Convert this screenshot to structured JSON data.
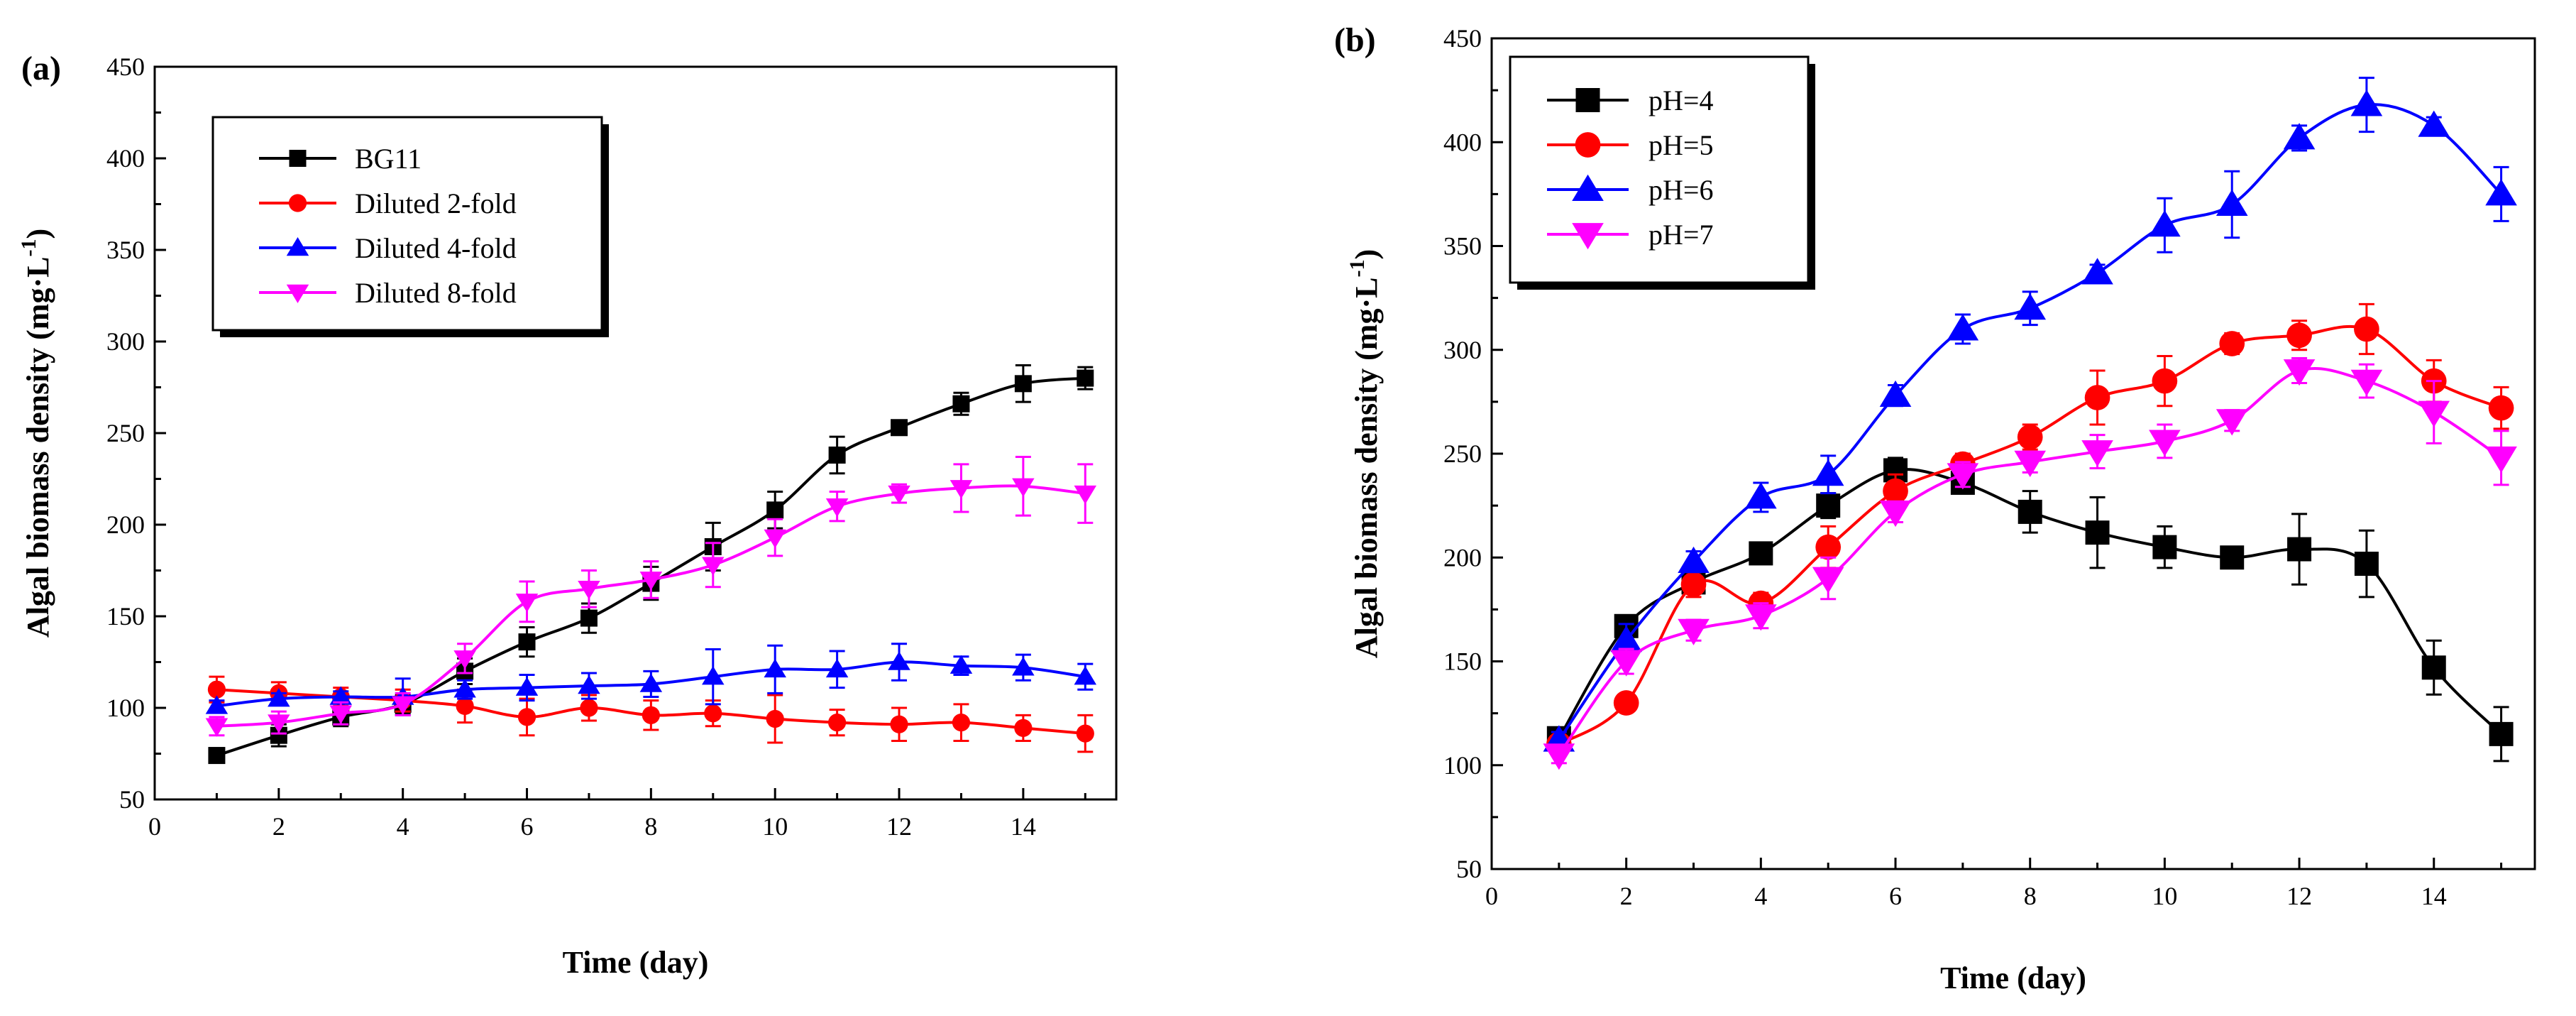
{
  "chart_data": [
    {
      "type": "line",
      "panel_label": "(a)",
      "xlabel": "Time (day)",
      "ylabel": "Algal biomass density (mg·L",
      "ylabel_exponent": "-1",
      "ylabel_close": ")",
      "xlim": [
        0,
        15.5
      ],
      "ylim": [
        50,
        450
      ],
      "xticks": [
        0,
        2,
        4,
        6,
        8,
        10,
        12,
        14
      ],
      "yticks": [
        50,
        100,
        150,
        200,
        250,
        300,
        350,
        400,
        450
      ],
      "legend_position": "top-left",
      "x": [
        1,
        2,
        3,
        4,
        5,
        6,
        7,
        8,
        9,
        10,
        11,
        12,
        13,
        14,
        15
      ],
      "series": [
        {
          "name": "BG11",
          "color": "#000000",
          "marker": "square",
          "values": [
            74,
            85,
            95,
            102,
            120,
            136,
            149,
            168,
            188,
            208,
            238,
            253,
            266,
            277,
            280
          ],
          "errors": [
            4,
            6,
            5,
            5,
            7,
            8,
            8,
            9,
            13,
            10,
            10,
            3,
            6,
            10,
            6
          ]
        },
        {
          "name": "Diluted 2-fold",
          "color": "#ff0000",
          "marker": "circle",
          "values": [
            110,
            108,
            106,
            104,
            101,
            95,
            100,
            96,
            97,
            94,
            92,
            91,
            92,
            89,
            86
          ],
          "errors": [
            7,
            6,
            5,
            6,
            9,
            10,
            7,
            8,
            7,
            13,
            7,
            9,
            10,
            7,
            10
          ]
        },
        {
          "name": "Diluted 4-fold",
          "color": "#0000ff",
          "marker": "triangle-up",
          "values": [
            101,
            105,
            106,
            106,
            110,
            111,
            112,
            113,
            117,
            121,
            121,
            125,
            123,
            122,
            117
          ],
          "errors": [
            3,
            3,
            3,
            10,
            5,
            7,
            7,
            7,
            15,
            13,
            10,
            10,
            5,
            7,
            7
          ]
        },
        {
          "name": "Diluted 8-fold",
          "color": "#ff00ff",
          "marker": "triangle-down",
          "values": [
            90,
            92,
            97,
            102,
            127,
            158,
            165,
            170,
            178,
            193,
            210,
            217,
            220,
            221,
            217
          ],
          "errors": [
            5,
            6,
            6,
            6,
            8,
            11,
            10,
            10,
            12,
            10,
            8,
            5,
            13,
            16,
            16
          ]
        }
      ]
    },
    {
      "type": "line",
      "panel_label": "(b)",
      "xlabel": "Time (day)",
      "ylabel": "Algal biomass density (mg·L",
      "ylabel_exponent": "-1",
      "ylabel_close": ")",
      "xlim": [
        0,
        15.5
      ],
      "ylim": [
        50,
        450
      ],
      "xticks": [
        0,
        2,
        4,
        6,
        8,
        10,
        12,
        14
      ],
      "yticks": [
        50,
        100,
        150,
        200,
        250,
        300,
        350,
        400,
        450
      ],
      "legend_position": "top-left",
      "x": [
        1,
        2,
        3,
        4,
        5,
        6,
        7,
        8,
        9,
        10,
        11,
        12,
        13,
        14,
        15
      ],
      "series": [
        {
          "name": "pH=4",
          "color": "#000000",
          "marker": "square",
          "values": [
            113,
            167,
            188,
            202,
            225,
            242,
            236,
            222,
            212,
            205,
            200,
            204,
            197,
            147,
            115
          ],
          "errors": [
            4,
            5,
            5,
            5,
            6,
            6,
            5,
            10,
            17,
            10,
            3,
            17,
            16,
            13,
            13
          ]
        },
        {
          "name": "pH=5",
          "color": "#ff0000",
          "marker": "circle",
          "values": [
            110,
            130,
            187,
            178,
            205,
            232,
            245,
            258,
            277,
            285,
            303,
            307,
            310,
            285,
            272
          ],
          "errors": [
            3,
            4,
            6,
            5,
            10,
            8,
            5,
            6,
            13,
            12,
            5,
            7,
            12,
            10,
            10
          ]
        },
        {
          "name": "pH=6",
          "color": "#0000ff",
          "marker": "triangle-up",
          "values": [
            112,
            160,
            198,
            229,
            240,
            278,
            310,
            320,
            337,
            360,
            370,
            402,
            418,
            408,
            375
          ],
          "errors": [
            4,
            8,
            5,
            7,
            9,
            5,
            7,
            8,
            4,
            13,
            16,
            6,
            13,
            4,
            13
          ]
        },
        {
          "name": "pH=7",
          "color": "#ff00ff",
          "marker": "triangle-down",
          "values": [
            105,
            150,
            165,
            172,
            190,
            222,
            240,
            246,
            251,
            256,
            266,
            290,
            285,
            270,
            248
          ],
          "errors": [
            4,
            6,
            5,
            6,
            10,
            5,
            6,
            5,
            8,
            8,
            5,
            6,
            8,
            15,
            13
          ]
        }
      ]
    }
  ]
}
